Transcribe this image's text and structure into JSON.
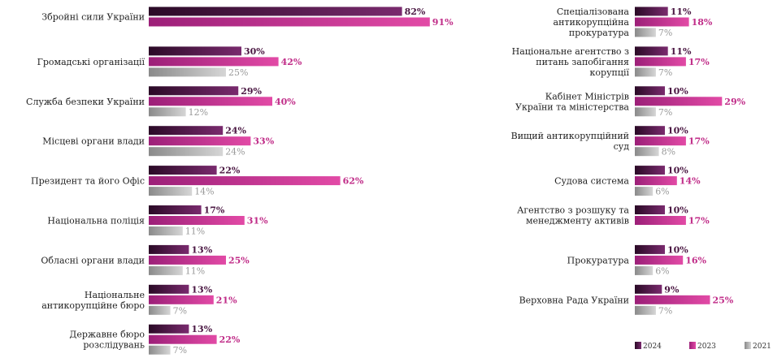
{
  "chart_data": {
    "type": "bar",
    "orientation": "horizontal",
    "title": "",
    "xlabel": "",
    "ylabel": "",
    "xlim": [
      0,
      100
    ],
    "grid": false,
    "legend_position": "bottom-right",
    "series": [
      {
        "name": "2024",
        "color": "#4a1742"
      },
      {
        "name": "2023",
        "color": "#cc3a95"
      },
      {
        "name": "2021",
        "color": "#b3b3b3"
      }
    ],
    "panels": [
      {
        "categories": [
          {
            "label": "Збройні сили України",
            "values": [
              82,
              91,
              null
            ]
          },
          {
            "label": "Громадські організації",
            "values": [
              30,
              42,
              25
            ]
          },
          {
            "label": "Служба безпеки України",
            "values": [
              29,
              40,
              12
            ]
          },
          {
            "label": "Місцеві органи влади",
            "values": [
              24,
              33,
              24
            ]
          },
          {
            "label": "Президент та його Офіс",
            "values": [
              22,
              62,
              14
            ]
          },
          {
            "label": "Національна поліція",
            "values": [
              17,
              31,
              11
            ]
          },
          {
            "label": "Обласні органи влади",
            "values": [
              13,
              25,
              11
            ]
          },
          {
            "label": "Національне антикорупційне бюро",
            "values": [
              13,
              21,
              7
            ]
          },
          {
            "label": "Державне бюро розслідувань",
            "values": [
              13,
              22,
              7
            ]
          }
        ]
      },
      {
        "categories": [
          {
            "label": "Спеціалізована антикорупційна прокуратура",
            "values": [
              11,
              18,
              7
            ]
          },
          {
            "label": "Національне агентство з питань запобігання корупції",
            "values": [
              11,
              17,
              7
            ]
          },
          {
            "label": "Кабінет Міністрів України та міністерства",
            "values": [
              10,
              29,
              7
            ]
          },
          {
            "label": "Вищий антикорупційний суд",
            "values": [
              10,
              17,
              8
            ]
          },
          {
            "label": "Судова система",
            "values": [
              10,
              14,
              6
            ]
          },
          {
            "label": "Агентство з розшуку та менеджменту активів",
            "values": [
              10,
              17,
              null
            ]
          },
          {
            "label": "Прокуратура",
            "values": [
              10,
              16,
              6
            ]
          },
          {
            "label": "Верховна Рада України",
            "values": [
              9,
              25,
              7
            ]
          }
        ]
      }
    ]
  }
}
